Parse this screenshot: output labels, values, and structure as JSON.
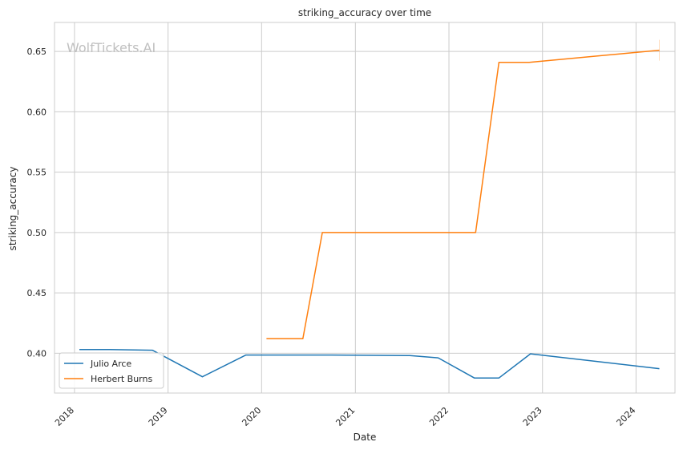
{
  "chart_data": {
    "type": "line",
    "title": "striking_accuracy over time",
    "xlabel": "Date",
    "ylabel": "striking_accuracy",
    "watermark": "WolfTickets.AI",
    "x_ticks": [
      "2018",
      "2019",
      "2020",
      "2021",
      "2022",
      "2023",
      "2024"
    ],
    "y_ticks": [
      "0.40",
      "0.45",
      "0.50",
      "0.55",
      "0.60",
      "0.65"
    ],
    "xlim": [
      "2017-10-15",
      "2024-06-01"
    ],
    "ylim": [
      0.367,
      0.674
    ],
    "grid": true,
    "legend_position": "lower-left",
    "series": [
      {
        "name": "Julio Arce",
        "color": "#1f77b4",
        "x": [
          "2018-01-20",
          "2018-05-20",
          "2018-11-01",
          "2019-05-15",
          "2019-11-01",
          "2020-10-01",
          "2021-08-01",
          "2021-11-20",
          "2022-04-10",
          "2022-07-15",
          "2022-11-15",
          "2024-04-01"
        ],
        "y": [
          0.403,
          0.403,
          0.4025,
          0.3805,
          0.3985,
          0.3985,
          0.398,
          0.3962,
          0.3795,
          0.3795,
          0.3995,
          0.3872
        ]
      },
      {
        "name": "Herbert Burns",
        "color": "#ff7f0e",
        "x": [
          "2020-01-20",
          "2020-06-10",
          "2020-08-25",
          "2022-04-15",
          "2022-07-15",
          "2022-11-10",
          "2024-04-01"
        ],
        "y": [
          0.412,
          0.412,
          0.5,
          0.5,
          0.641,
          0.641,
          0.651
        ]
      }
    ]
  }
}
